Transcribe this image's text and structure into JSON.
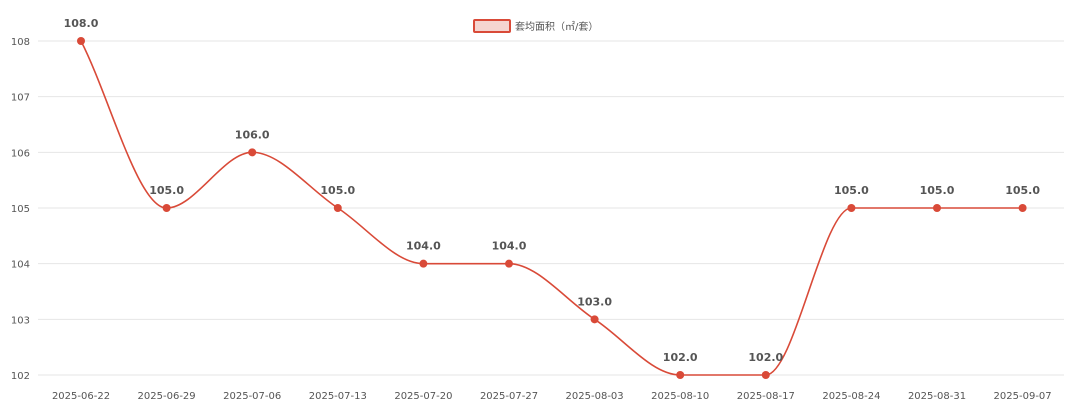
{
  "chart_data": {
    "type": "line",
    "title": "",
    "xlabel": "",
    "ylabel": "",
    "categories": [
      "2025-06-22",
      "2025-06-29",
      "2025-07-06",
      "2025-07-13",
      "2025-07-20",
      "2025-07-27",
      "2025-08-03",
      "2025-08-10",
      "2025-08-17",
      "2025-08-24",
      "2025-08-31",
      "2025-09-07"
    ],
    "series": [
      {
        "name": "套均面积（㎡/套）",
        "values": [
          108.0,
          105.0,
          106.0,
          105.0,
          104.0,
          104.0,
          103.0,
          102.0,
          102.0,
          105.0,
          105.0,
          105.0
        ],
        "data_labels": [
          "108.0",
          "105.0",
          "106.0",
          "105.0",
          "104.0",
          "104.0",
          "103.0",
          "102.0",
          "102.0",
          "105.0",
          "105.0",
          "105.0"
        ]
      }
    ],
    "ylim": [
      102,
      108
    ],
    "yticks": [
      "102",
      "103",
      "104",
      "105",
      "106",
      "107",
      "108"
    ],
    "grid": true,
    "legend_position": "top-center",
    "colors": {
      "line": "#d94a38",
      "point": "#d94a38",
      "legend_fill": "#f5d5d0",
      "grid": "#e6e6e6",
      "text": "#555555"
    }
  }
}
